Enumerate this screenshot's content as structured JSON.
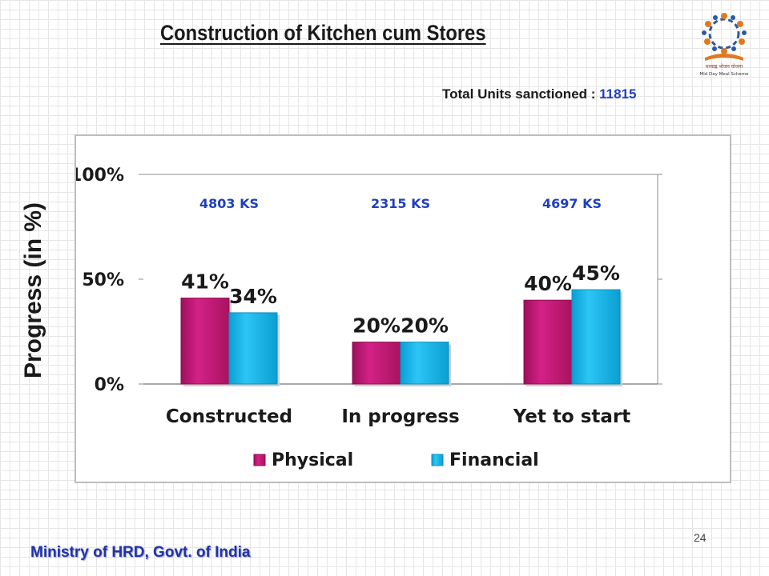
{
  "slide": {
    "title": "Construction of Kitchen cum Stores",
    "total_label": "Total Units sanctioned  :",
    "total_value": "11815",
    "footer": "Ministry of HRD, Govt. of India",
    "page_number": "24",
    "logo_text_1": "मध्याह्न भोजन योजना",
    "logo_text_2": "Mid Day Meal Scheme"
  },
  "chart_data": {
    "type": "bar",
    "ylabel": "Progress (in %)",
    "ylim": [
      0,
      100
    ],
    "ytick_values": [
      0,
      50,
      100
    ],
    "ytick_labels": [
      "0%",
      "50%",
      "100%"
    ],
    "categories": [
      "Constructed",
      "In progress",
      "Yet to start"
    ],
    "category_annotations": [
      "4803 KS",
      "2315 KS",
      "4697 KS"
    ],
    "series": [
      {
        "name": "Physical",
        "values": [
          41,
          20,
          40
        ],
        "labels": [
          "41%",
          "20%",
          "40%"
        ],
        "color": "#c8177b"
      },
      {
        "name": "Financial",
        "values": [
          34,
          20,
          45
        ],
        "labels": [
          "34%",
          "20%",
          "45%"
        ],
        "color": "#16b9ee"
      }
    ],
    "annotation_color": "#1f3fbf",
    "grid": false,
    "legend_position": "bottom"
  }
}
